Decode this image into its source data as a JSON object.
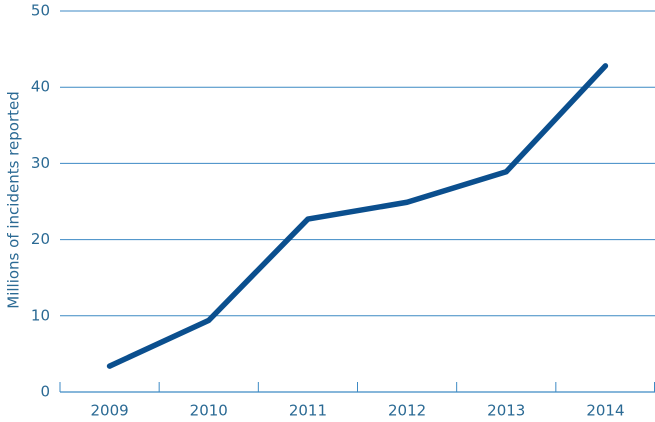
{
  "chart_data": {
    "type": "line",
    "y_label": "Millions of incidents reported",
    "categories": [
      "2009",
      "2010",
      "2011",
      "2012",
      "2013",
      "2014"
    ],
    "values": [
      3.4,
      9.4,
      22.7,
      24.9,
      28.9,
      42.8
    ],
    "color": "#0b4f8e",
    "ylim": [
      0,
      50
    ],
    "yticks": [
      0,
      10,
      20,
      30,
      40,
      50
    ],
    "grid": true
  }
}
